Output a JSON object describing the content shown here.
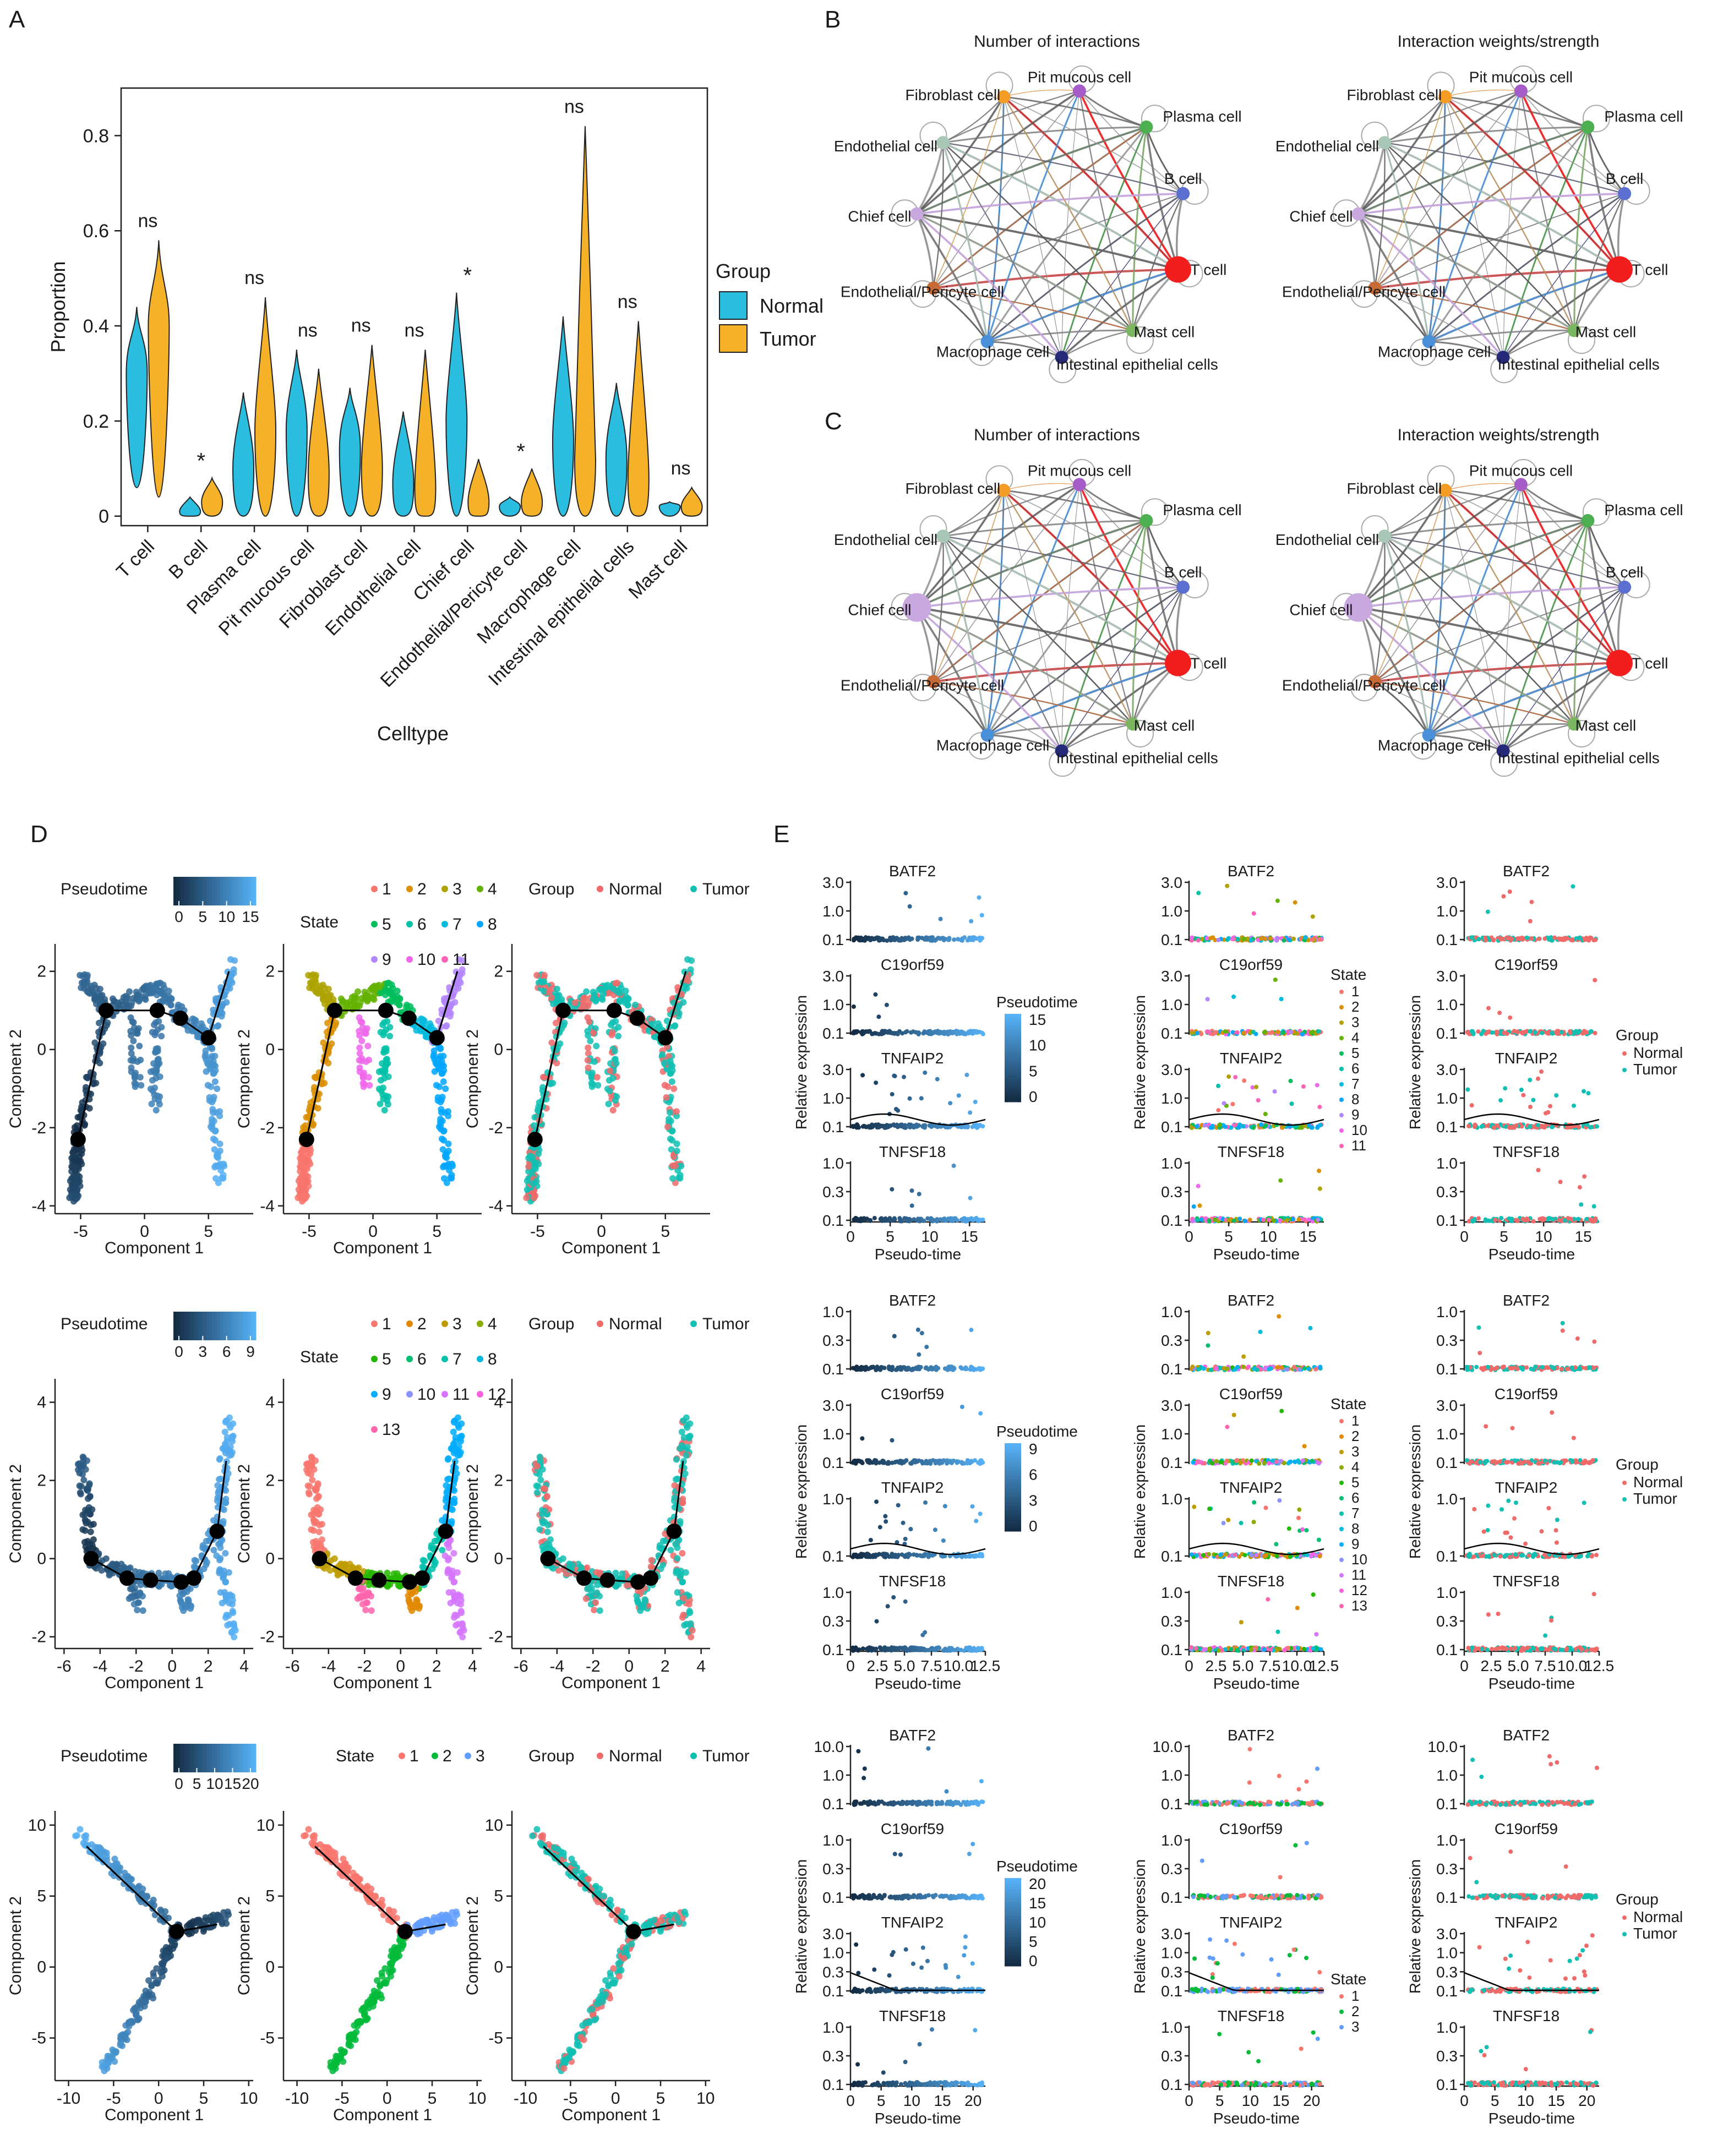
{
  "panel_letters": [
    "A",
    "B",
    "C",
    "D",
    "E"
  ],
  "colors": {
    "normal": "#2bbde0",
    "tumor": "#f5b229",
    "normal_dot": "#f06a6a",
    "tumor_dot": "#11c0b3",
    "pt_low": "#132b43",
    "pt_high": "#56b1f7"
  },
  "chart_data": [
    {
      "id": "A",
      "type": "violin",
      "xlabel": "Celltype",
      "ylabel": "Proportion",
      "yticks": [
        "0",
        "0.2",
        "0.4",
        "0.6",
        "0.8"
      ],
      "ylim": [
        -0.02,
        0.9
      ],
      "legend": {
        "title": "Group",
        "items": [
          "Normal",
          "Tumor"
        ]
      },
      "categories": [
        "T cell",
        "B cell",
        "Plasma cell",
        "Pit mucous cell",
        "Fibroblast cell",
        "Endothelial cell",
        "Chief cell",
        "Endothelial/Pericyte cell",
        "Macrophage cell",
        "Intestinal epithelial cells",
        "Mast cell"
      ],
      "significance": [
        "ns",
        "*",
        "ns",
        "ns",
        "ns",
        "ns",
        "*",
        "*",
        "ns",
        "ns",
        "ns"
      ],
      "series": [
        {
          "name": "Normal",
          "min": [
            0.06,
            0.0,
            0.0,
            0.0,
            0.0,
            0.0,
            0.0,
            0.0,
            0.0,
            0.0,
            0.0
          ],
          "max": [
            0.44,
            0.04,
            0.26,
            0.35,
            0.27,
            0.22,
            0.47,
            0.04,
            0.42,
            0.28,
            0.03
          ],
          "mode": [
            0.3,
            0.01,
            0.1,
            0.18,
            0.14,
            0.07,
            0.2,
            0.02,
            0.16,
            0.12,
            0.02
          ]
        },
        {
          "name": "Tumor",
          "min": [
            0.04,
            0.0,
            0.0,
            0.0,
            0.0,
            0.0,
            0.0,
            0.0,
            0.0,
            0.0,
            0.0
          ],
          "max": [
            0.58,
            0.08,
            0.46,
            0.31,
            0.36,
            0.35,
            0.12,
            0.1,
            0.82,
            0.41,
            0.06
          ],
          "mode": [
            0.4,
            0.03,
            0.18,
            0.09,
            0.1,
            0.06,
            0.03,
            0.03,
            0.12,
            0.08,
            0.02
          ]
        }
      ]
    },
    {
      "id": "B-C",
      "type": "network",
      "titles": [
        "Number of interactions",
        "Interaction weights/strength"
      ],
      "nodes": [
        "Pit mucous cell",
        "Plasma cell",
        "B cell",
        "T cell",
        "Mast cell",
        "Intestinal epithelial cells",
        "Macrophage cell",
        "Endothelial/Pericyte cell",
        "Chief cell",
        "Endothelial cell",
        "Fibroblast cell"
      ],
      "node_colors": [
        "#a55cc9",
        "#4caf50",
        "#5b6fd1",
        "#f21d1d",
        "#7bb661",
        "#262a7a",
        "#4a90d9",
        "#c86a36",
        "#c9a8e0",
        "#a9c7b6",
        "#f39c26"
      ]
    },
    {
      "id": "D",
      "type": "scatter",
      "rows": [
        {
          "ptime_ticks": [
            "0",
            "5",
            "10",
            "15"
          ],
          "states": [
            "1",
            "2",
            "3",
            "4",
            "5",
            "6",
            "7",
            "8",
            "9",
            "10",
            "11"
          ],
          "xticks": [
            "-5",
            "0",
            "5"
          ],
          "yticks": [
            "-4",
            "-2",
            "0",
            "2"
          ],
          "xlim": [
            -7,
            8.5
          ],
          "ylim": [
            -4.2,
            2.7
          ]
        },
        {
          "ptime_ticks": [
            "0",
            "3",
            "6",
            "9"
          ],
          "states": [
            "1",
            "2",
            "3",
            "4",
            "5",
            "6",
            "7",
            "8",
            "9",
            "10",
            "11",
            "12",
            "13"
          ],
          "xticks": [
            "-6",
            "-4",
            "-2",
            "0",
            "2",
            "4"
          ],
          "yticks": [
            "-2",
            "0",
            "2",
            "4"
          ],
          "xlim": [
            -6.5,
            4.5
          ],
          "ylim": [
            -2.3,
            4.6
          ]
        },
        {
          "ptime_ticks": [
            "0",
            "5",
            "10",
            "15",
            "20"
          ],
          "states": [
            "1",
            "2",
            "3"
          ],
          "xticks": [
            "-10",
            "-5",
            "0",
            "5",
            "10"
          ],
          "yticks": [
            "-5",
            "0",
            "5",
            "10"
          ],
          "xlim": [
            -11.5,
            10.5
          ],
          "ylim": [
            -8,
            11
          ]
        }
      ],
      "xlabel": "Component 1",
      "ylabel": "Component 2",
      "legend_titles": [
        "Pseudotime",
        "State",
        "Group"
      ],
      "group_items": [
        "Normal",
        "Tumor"
      ]
    },
    {
      "id": "E",
      "type": "scatter",
      "genes": [
        "BATF2",
        "C19orf59",
        "TNFAIP2",
        "TNFSF18"
      ],
      "xlabel": "Pseudo-time",
      "ylabel": "Relative expression",
      "rows": [
        {
          "xticks": [
            "0",
            "5",
            "10",
            "15"
          ],
          "xlim": [
            0,
            17
          ]
        },
        {
          "xticks": [
            "0",
            "2.5",
            "5.0",
            "7.5",
            "10.0",
            "12.5"
          ],
          "xlim": [
            0,
            12.5
          ]
        },
        {
          "xticks": [
            "0",
            "5",
            "10",
            "15",
            "20"
          ],
          "xlim": [
            0,
            22
          ]
        }
      ],
      "ytick_sets": {
        "r0": [
          [
            "3.0",
            "1.0",
            "0.1"
          ],
          [
            "3.0",
            "1.0",
            "0.1"
          ],
          [
            "3.0",
            "1.0",
            "0.1"
          ],
          [
            "1.0",
            "0.3",
            "0.1"
          ]
        ],
        "r1": [
          [
            "1.0",
            "0.3",
            "0.1"
          ],
          [
            "3.0",
            "1.0",
            "0.1"
          ],
          [
            "1.0",
            "0.1"
          ],
          [
            "1.0",
            "0.3",
            "0.1"
          ]
        ],
        "r2": [
          [
            "10.0",
            "1.0",
            "0.1"
          ],
          [
            "1.0",
            "0.3",
            "0.1"
          ],
          [
            "3.0",
            "1.0",
            "0.3",
            "0.1"
          ],
          [
            "1.0",
            "0.3",
            "0.1"
          ]
        ]
      }
    }
  ]
}
